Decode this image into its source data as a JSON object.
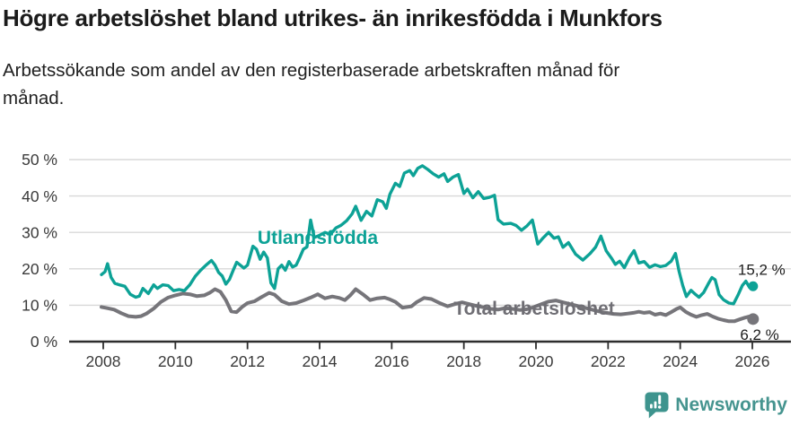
{
  "header": {
    "title": "Högre arbetslöshet bland utrikes- än inrikesfödda i Munkfors",
    "subtitle": "Arbetssökande som andel av den registerbaserade arbetskraften månad för\nmånad."
  },
  "footer": {
    "brand": "Newsworthy"
  },
  "colors": {
    "background": "#ffffff",
    "title_text": "#1b1b1b",
    "axis_text": "#3a3a3a",
    "gridline": "#d8d8d8",
    "axis_line": "#2d2d2d",
    "series_foreign_born": "#0da296",
    "series_total": "#76757a",
    "end_label_text": "#1d1d1d",
    "brand_teal": "#45948f"
  },
  "chart_data": {
    "type": "line",
    "title": "Högre arbetslöshet bland utrikes- än inrikesfödda i Munkfors",
    "subtitle": "Arbetssökande som andel av den registerbaserade arbetskraften månad för månad.",
    "grid": "horizontal",
    "legend_position": "inline-labels",
    "x_axis": {
      "ticks": [
        2008,
        2010,
        2012,
        2014,
        2016,
        2018,
        2020,
        2022,
        2024,
        2026
      ]
    },
    "y_axis": {
      "min": 0,
      "max": 50,
      "unit": "%",
      "ticks": [
        0,
        10,
        20,
        30,
        40,
        50
      ],
      "tick_labels": [
        "0 %",
        "10 %",
        "20 %",
        "30 %",
        "40 %",
        "50 %"
      ]
    },
    "series": [
      {
        "name": "Utlandsfödda",
        "slug": "utlandsfodda",
        "color": "#0da296",
        "label_color": "#0da296",
        "stroke_width": 3.4,
        "marker_radius": 5.5,
        "label_year": 2012.28,
        "label_value": 26.8,
        "end_label": "15,2 %",
        "end_value": 15.2,
        "end_label_offset": {
          "dx": 36,
          "dy": -13
        },
        "points": [
          [
            2007.95,
            18.4
          ],
          [
            2008.05,
            19.2
          ],
          [
            2008.12,
            21.4
          ],
          [
            2008.22,
            17.6
          ],
          [
            2008.32,
            16.0
          ],
          [
            2008.45,
            15.6
          ],
          [
            2008.6,
            15.2
          ],
          [
            2008.75,
            13.0
          ],
          [
            2008.9,
            12.2
          ],
          [
            2009.0,
            12.5
          ],
          [
            2009.1,
            14.6
          ],
          [
            2009.25,
            13.2
          ],
          [
            2009.4,
            15.6
          ],
          [
            2009.5,
            14.6
          ],
          [
            2009.65,
            15.6
          ],
          [
            2009.8,
            15.4
          ],
          [
            2009.95,
            14.0
          ],
          [
            2010.1,
            14.3
          ],
          [
            2010.25,
            14.0
          ],
          [
            2010.4,
            15.6
          ],
          [
            2010.55,
            17.9
          ],
          [
            2010.7,
            19.6
          ],
          [
            2010.85,
            21.0
          ],
          [
            2011.0,
            22.3
          ],
          [
            2011.1,
            21.0
          ],
          [
            2011.2,
            19.0
          ],
          [
            2011.3,
            18.0
          ],
          [
            2011.4,
            15.8
          ],
          [
            2011.5,
            17.1
          ],
          [
            2011.6,
            19.5
          ],
          [
            2011.7,
            21.8
          ],
          [
            2011.8,
            21.0
          ],
          [
            2011.9,
            20.2
          ],
          [
            2012.0,
            21.0
          ],
          [
            2012.15,
            26.2
          ],
          [
            2012.25,
            25.4
          ],
          [
            2012.35,
            22.6
          ],
          [
            2012.45,
            24.6
          ],
          [
            2012.55,
            23.0
          ],
          [
            2012.65,
            16.1
          ],
          [
            2012.75,
            14.6
          ],
          [
            2012.85,
            20.0
          ],
          [
            2012.95,
            21.0
          ],
          [
            2013.05,
            19.6
          ],
          [
            2013.15,
            22.0
          ],
          [
            2013.25,
            20.5
          ],
          [
            2013.35,
            21.0
          ],
          [
            2013.45,
            23.1
          ],
          [
            2013.55,
            25.4
          ],
          [
            2013.65,
            26.0
          ],
          [
            2013.75,
            33.4
          ],
          [
            2013.85,
            28.6
          ],
          [
            2014.0,
            29.2
          ],
          [
            2014.15,
            30.0
          ],
          [
            2014.3,
            29.5
          ],
          [
            2014.45,
            31.2
          ],
          [
            2014.6,
            32.0
          ],
          [
            2014.75,
            33.2
          ],
          [
            2014.9,
            35.1
          ],
          [
            2015.0,
            37.2
          ],
          [
            2015.15,
            33.3
          ],
          [
            2015.3,
            35.8
          ],
          [
            2015.45,
            34.5
          ],
          [
            2015.6,
            39.0
          ],
          [
            2015.75,
            38.4
          ],
          [
            2015.85,
            36.6
          ],
          [
            2015.95,
            40.5
          ],
          [
            2016.1,
            43.5
          ],
          [
            2016.22,
            42.6
          ],
          [
            2016.35,
            46.3
          ],
          [
            2016.5,
            47.0
          ],
          [
            2016.6,
            45.6
          ],
          [
            2016.72,
            47.6
          ],
          [
            2016.85,
            48.3
          ],
          [
            2017.0,
            47.3
          ],
          [
            2017.15,
            46.1
          ],
          [
            2017.3,
            45.2
          ],
          [
            2017.45,
            46.1
          ],
          [
            2017.55,
            44.0
          ],
          [
            2017.7,
            45.2
          ],
          [
            2017.85,
            45.9
          ],
          [
            2018.0,
            40.7
          ],
          [
            2018.1,
            41.9
          ],
          [
            2018.25,
            39.5
          ],
          [
            2018.4,
            41.2
          ],
          [
            2018.55,
            39.3
          ],
          [
            2018.7,
            39.6
          ],
          [
            2018.85,
            40.2
          ],
          [
            2018.95,
            33.5
          ],
          [
            2019.1,
            32.3
          ],
          [
            2019.3,
            32.5
          ],
          [
            2019.45,
            31.9
          ],
          [
            2019.6,
            30.6
          ],
          [
            2019.75,
            31.8
          ],
          [
            2019.9,
            33.4
          ],
          [
            2020.05,
            26.8
          ],
          [
            2020.2,
            28.5
          ],
          [
            2020.35,
            30.0
          ],
          [
            2020.5,
            28.4
          ],
          [
            2020.62,
            28.8
          ],
          [
            2020.75,
            25.9
          ],
          [
            2020.9,
            27.2
          ],
          [
            2021.1,
            24.0
          ],
          [
            2021.3,
            22.4
          ],
          [
            2021.5,
            24.2
          ],
          [
            2021.65,
            25.9
          ],
          [
            2021.8,
            29.0
          ],
          [
            2021.95,
            24.9
          ],
          [
            2022.1,
            22.8
          ],
          [
            2022.2,
            21.2
          ],
          [
            2022.32,
            22.1
          ],
          [
            2022.45,
            20.3
          ],
          [
            2022.6,
            23.2
          ],
          [
            2022.72,
            25.0
          ],
          [
            2022.85,
            21.6
          ],
          [
            2023.0,
            22.0
          ],
          [
            2023.15,
            20.4
          ],
          [
            2023.3,
            21.1
          ],
          [
            2023.45,
            20.6
          ],
          [
            2023.6,
            20.9
          ],
          [
            2023.75,
            22.1
          ],
          [
            2023.87,
            24.2
          ],
          [
            2023.97,
            19.2
          ],
          [
            2024.07,
            15.4
          ],
          [
            2024.17,
            12.4
          ],
          [
            2024.3,
            14.1
          ],
          [
            2024.42,
            13.0
          ],
          [
            2024.52,
            12.2
          ],
          [
            2024.65,
            13.5
          ],
          [
            2024.78,
            15.9
          ],
          [
            2024.88,
            17.6
          ],
          [
            2024.97,
            17.0
          ],
          [
            2025.08,
            12.9
          ],
          [
            2025.2,
            11.5
          ],
          [
            2025.35,
            10.6
          ],
          [
            2025.48,
            10.4
          ],
          [
            2025.6,
            12.7
          ],
          [
            2025.72,
            15.4
          ],
          [
            2025.82,
            16.6
          ],
          [
            2025.92,
            14.9
          ],
          [
            2026.02,
            15.2
          ]
        ]
      },
      {
        "name": "Total arbetslöshet",
        "slug": "total-arbetsloshet",
        "color": "#76757a",
        "label_color": "#6f6e74",
        "stroke_width": 4.0,
        "marker_radius": 6.5,
        "label_year": 2017.72,
        "label_value": 7.35,
        "end_label": "6,2 %",
        "end_value": 6.2,
        "end_label_offset": {
          "dx": 29,
          "dy": 23
        },
        "points": [
          [
            2007.95,
            9.5
          ],
          [
            2008.1,
            9.2
          ],
          [
            2008.3,
            8.8
          ],
          [
            2008.5,
            7.8
          ],
          [
            2008.7,
            7.0
          ],
          [
            2008.9,
            6.8
          ],
          [
            2009.05,
            7.0
          ],
          [
            2009.2,
            7.7
          ],
          [
            2009.4,
            9.1
          ],
          [
            2009.6,
            10.9
          ],
          [
            2009.8,
            12.1
          ],
          [
            2010.0,
            12.7
          ],
          [
            2010.2,
            13.2
          ],
          [
            2010.4,
            13.0
          ],
          [
            2010.6,
            12.5
          ],
          [
            2010.8,
            12.7
          ],
          [
            2010.95,
            13.4
          ],
          [
            2011.1,
            14.4
          ],
          [
            2011.25,
            13.7
          ],
          [
            2011.4,
            11.4
          ],
          [
            2011.55,
            8.3
          ],
          [
            2011.7,
            8.1
          ],
          [
            2011.85,
            9.5
          ],
          [
            2012.0,
            10.6
          ],
          [
            2012.2,
            11.1
          ],
          [
            2012.4,
            12.3
          ],
          [
            2012.6,
            13.4
          ],
          [
            2012.75,
            12.9
          ],
          [
            2012.95,
            11.1
          ],
          [
            2013.15,
            10.3
          ],
          [
            2013.35,
            10.6
          ],
          [
            2013.55,
            11.3
          ],
          [
            2013.75,
            12.1
          ],
          [
            2013.95,
            13.0
          ],
          [
            2014.15,
            11.9
          ],
          [
            2014.35,
            12.4
          ],
          [
            2014.55,
            12.0
          ],
          [
            2014.7,
            11.4
          ],
          [
            2014.85,
            12.7
          ],
          [
            2015.0,
            14.4
          ],
          [
            2015.2,
            13.0
          ],
          [
            2015.4,
            11.4
          ],
          [
            2015.6,
            11.9
          ],
          [
            2015.8,
            12.1
          ],
          [
            2015.95,
            11.6
          ],
          [
            2016.1,
            10.9
          ],
          [
            2016.3,
            9.3
          ],
          [
            2016.55,
            9.7
          ],
          [
            2016.7,
            10.9
          ],
          [
            2016.9,
            12.0
          ],
          [
            2017.1,
            11.7
          ],
          [
            2017.35,
            10.5
          ],
          [
            2017.55,
            9.7
          ],
          [
            2017.75,
            10.3
          ],
          [
            2017.95,
            10.8
          ],
          [
            2018.15,
            10.3
          ],
          [
            2018.35,
            9.8
          ],
          [
            2018.55,
            9.4
          ],
          [
            2018.75,
            9.0
          ],
          [
            2018.95,
            8.8
          ],
          [
            2019.15,
            9.2
          ],
          [
            2019.35,
            9.0
          ],
          [
            2019.55,
            8.7
          ],
          [
            2019.75,
            8.9
          ],
          [
            2019.95,
            9.5
          ],
          [
            2020.15,
            10.3
          ],
          [
            2020.35,
            11.0
          ],
          [
            2020.55,
            11.3
          ],
          [
            2020.75,
            10.8
          ],
          [
            2020.95,
            10.3
          ],
          [
            2021.15,
            9.8
          ],
          [
            2021.35,
            9.3
          ],
          [
            2021.55,
            8.8
          ],
          [
            2021.75,
            8.3
          ],
          [
            2021.95,
            7.9
          ],
          [
            2022.15,
            7.6
          ],
          [
            2022.35,
            7.5
          ],
          [
            2022.55,
            7.7
          ],
          [
            2022.7,
            7.9
          ],
          [
            2022.85,
            8.2
          ],
          [
            2023.0,
            7.9
          ],
          [
            2023.15,
            8.1
          ],
          [
            2023.3,
            7.4
          ],
          [
            2023.45,
            7.7
          ],
          [
            2023.6,
            7.3
          ],
          [
            2023.75,
            8.1
          ],
          [
            2023.9,
            9.0
          ],
          [
            2024.0,
            9.4
          ],
          [
            2024.15,
            8.2
          ],
          [
            2024.3,
            7.4
          ],
          [
            2024.45,
            6.8
          ],
          [
            2024.6,
            7.3
          ],
          [
            2024.75,
            7.6
          ],
          [
            2024.9,
            6.9
          ],
          [
            2025.05,
            6.3
          ],
          [
            2025.2,
            5.9
          ],
          [
            2025.35,
            5.6
          ],
          [
            2025.5,
            5.6
          ],
          [
            2025.65,
            6.1
          ],
          [
            2025.8,
            6.6
          ],
          [
            2025.92,
            6.9
          ],
          [
            2026.02,
            6.2
          ]
        ]
      }
    ]
  }
}
